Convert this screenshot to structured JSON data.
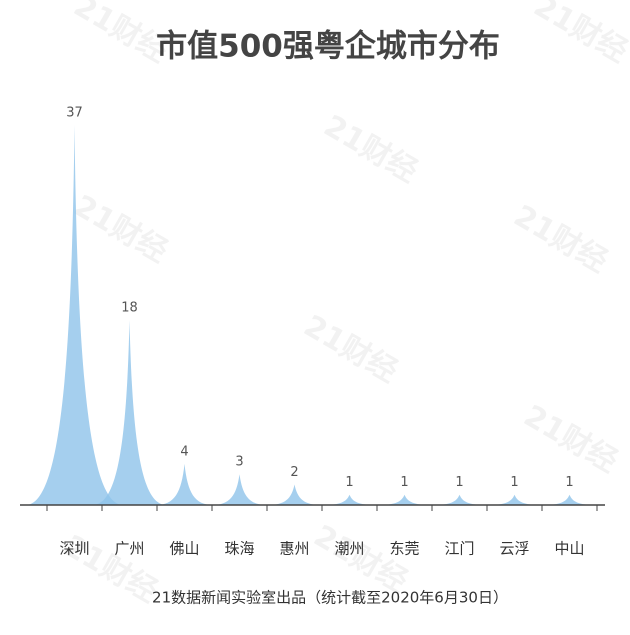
{
  "chart_data": {
    "type": "peak",
    "title": "市值500强粤企城市分布",
    "categories": [
      "深圳",
      "广州",
      "佛山",
      "珠海",
      "惠州",
      "潮州",
      "东莞",
      "江门",
      "云浮",
      "中山"
    ],
    "values": [
      37,
      18,
      4,
      3,
      2,
      1,
      1,
      1,
      1,
      1
    ],
    "color": "#8fc3ea",
    "source": "21数据新闻实验室出品（统计截至2020年6月30日）",
    "watermark": "21财经"
  }
}
